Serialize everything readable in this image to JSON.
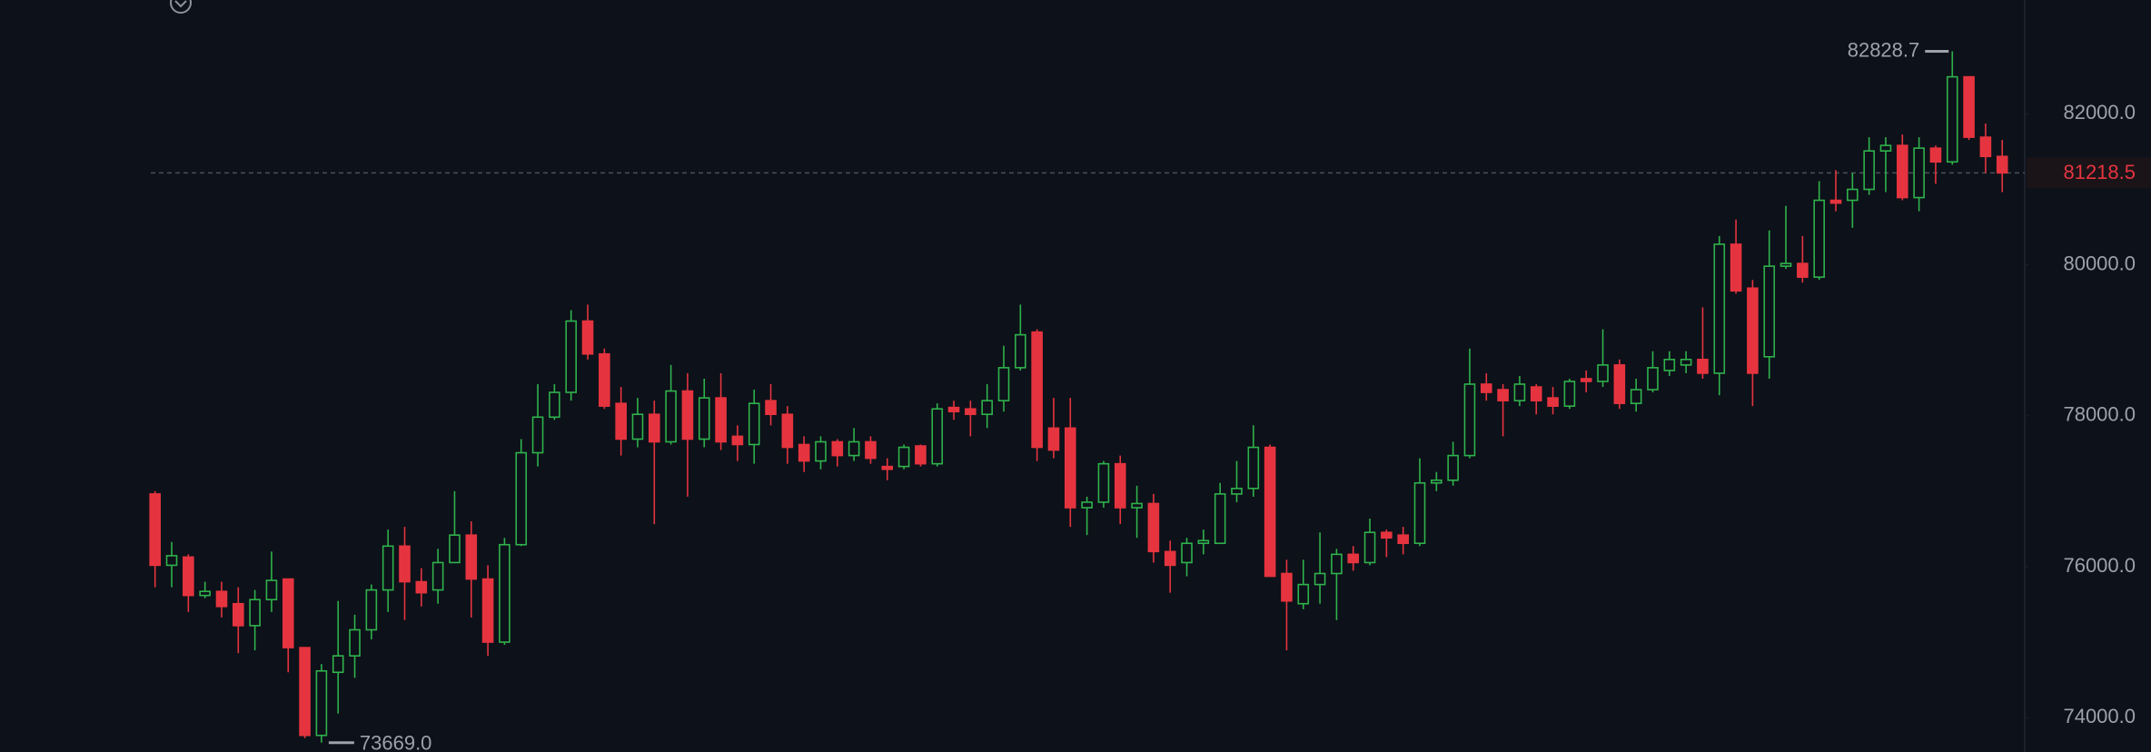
{
  "chart_data": {
    "type": "candlestick",
    "up_color": "#2fb24c",
    "down_color": "#e5343f",
    "ylim": [
      73545,
      83509
    ],
    "yticks": [
      {
        "value": 74000,
        "label": "74000.0"
      },
      {
        "value": 76000,
        "label": "76000.0"
      },
      {
        "value": 78000,
        "label": "78000.0"
      },
      {
        "value": 80000,
        "label": "80000.0"
      },
      {
        "value": 82000,
        "label": "82000.0"
      }
    ],
    "last_price": 81218.5,
    "max_label": 82828.7,
    "min_label": {
      "value": 73669,
      "label": "73669.0"
    },
    "open": [
      76964,
      76019,
      76128,
      75619,
      75673,
      75510,
      75219,
      75564,
      75837,
      74928,
      73765,
      74601,
      74819,
      75164,
      75692,
      76273,
      75801,
      75692,
      76055,
      76419,
      75837,
      75001,
      76292,
      77510,
      77982,
      78310,
      79255,
      78819,
      78164,
      77691,
      78019,
      77655,
      78328,
      77691,
      78237,
      77728,
      77619,
      78200,
      78019,
      77619,
      77401,
      77655,
      77473,
      77655,
      77328,
      77328,
      77600,
      77364,
      78110,
      78091,
      78019,
      78200,
      78637,
      79109,
      77837,
      77837,
      76782,
      76855,
      77364,
      76782,
      76837,
      76201,
      76055,
      76310,
      76310,
      76964,
      77037,
      77582,
      75910,
      75510,
      75764,
      75910,
      76164,
      76055,
      76455,
      76419,
      76310,
      77110,
      77146,
      77473,
      78419,
      78346,
      78200,
      78382,
      78237,
      78128,
      78491,
      78455,
      78673,
      78164,
      78346,
      78600,
      78673,
      78746,
      78564,
      80273,
      79691,
      78782,
      79982,
      80018,
      79837,
      80855,
      80855,
      81000,
      81509,
      81582,
      80891,
      81546,
      81364,
      82491,
      81691,
      81436
    ],
    "high": [
      77001,
      76328,
      76164,
      75801,
      75801,
      75728,
      75692,
      76201,
      75837,
      74928,
      74710,
      75546,
      75364,
      75764,
      76492,
      76528,
      75982,
      76237,
      77001,
      76601,
      76019,
      76382,
      77691,
      78419,
      78419,
      79400,
      79473,
      78891,
      78382,
      78237,
      78200,
      78673,
      78564,
      78491,
      78564,
      77873,
      78346,
      78419,
      78128,
      77728,
      77728,
      77691,
      77837,
      77728,
      77437,
      77619,
      77619,
      78164,
      78200,
      78200,
      78419,
      78928,
      79473,
      79146,
      78237,
      78237,
      76928,
      77401,
      77473,
      77073,
      76964,
      76346,
      76382,
      76492,
      77110,
      77401,
      77873,
      77619,
      76092,
      76092,
      76455,
      76237,
      76273,
      76637,
      76492,
      76528,
      77437,
      77255,
      77655,
      78891,
      78564,
      78419,
      78528,
      78419,
      78382,
      78491,
      78600,
      79146,
      78746,
      78491,
      78855,
      78855,
      78855,
      79437,
      80382,
      80600,
      79800,
      80455,
      80782,
      80382,
      81109,
      81255,
      81218,
      81691,
      81691,
      81727,
      81691,
      81582,
      82828.7,
      82491,
      81873,
      81655
    ],
    "low": [
      75728,
      75728,
      75401,
      75583,
      75328,
      74855,
      74892,
      75401,
      74601,
      73728,
      73669,
      74055,
      74528,
      75037,
      75401,
      75292,
      75473,
      75510,
      76055,
      75328,
      74819,
      74964,
      76273,
      77328,
      77946,
      78200,
      78746,
      78091,
      77473,
      77582,
      76564,
      77619,
      76928,
      77582,
      77546,
      77401,
      77364,
      77873,
      77364,
      77255,
      77291,
      77328,
      77401,
      77364,
      77146,
      77291,
      77328,
      77328,
      77946,
      77728,
      77837,
      78055,
      78600,
      77401,
      77437,
      76528,
      76419,
      76782,
      76564,
      76382,
      76055,
      75655,
      75873,
      76164,
      76310,
      76855,
      76928,
      75873,
      74892,
      75437,
      75510,
      75292,
      75946,
      76019,
      76128,
      76164,
      76273,
      77001,
      77073,
      77437,
      78200,
      77728,
      78128,
      78019,
      78019,
      78091,
      78310,
      78382,
      78091,
      78055,
      78310,
      78528,
      78564,
      78491,
      78273,
      79618,
      78128,
      78491,
      79946,
      79764,
      79800,
      80709,
      80491,
      80927,
      80964,
      80855,
      80709,
      81073,
      81327,
      81655,
      81218,
      80964
    ],
    "close": [
      76019,
      76146,
      75619,
      75673,
      75473,
      75219,
      75564,
      75819,
      74928,
      73765,
      74619,
      74819,
      75164,
      75692,
      76273,
      75801,
      75655,
      76055,
      76419,
      75837,
      75001,
      76292,
      77510,
      77982,
      78310,
      79255,
      78819,
      78128,
      77691,
      78019,
      77655,
      78328,
      77691,
      78237,
      77655,
      77619,
      78164,
      78019,
      77582,
      77401,
      77655,
      77473,
      77655,
      77437,
      77291,
      77582,
      77364,
      78091,
      78055,
      78019,
      78200,
      78637,
      79073,
      77582,
      77546,
      76782,
      76855,
      77364,
      76782,
      76837,
      76201,
      76019,
      76310,
      76346,
      76964,
      77037,
      77582,
      75873,
      75546,
      75764,
      75910,
      76164,
      76055,
      76455,
      76382,
      76310,
      77110,
      77146,
      77473,
      78419,
      78310,
      78200,
      78419,
      78200,
      78128,
      78455,
      78455,
      78673,
      78164,
      78346,
      78637,
      78746,
      78746,
      78564,
      80273,
      79655,
      78564,
      79982,
      80018,
      79837,
      80855,
      80818,
      81000,
      81509,
      81582,
      80891,
      81546,
      81364,
      82491,
      81691,
      81436,
      81218.5
    ]
  }
}
